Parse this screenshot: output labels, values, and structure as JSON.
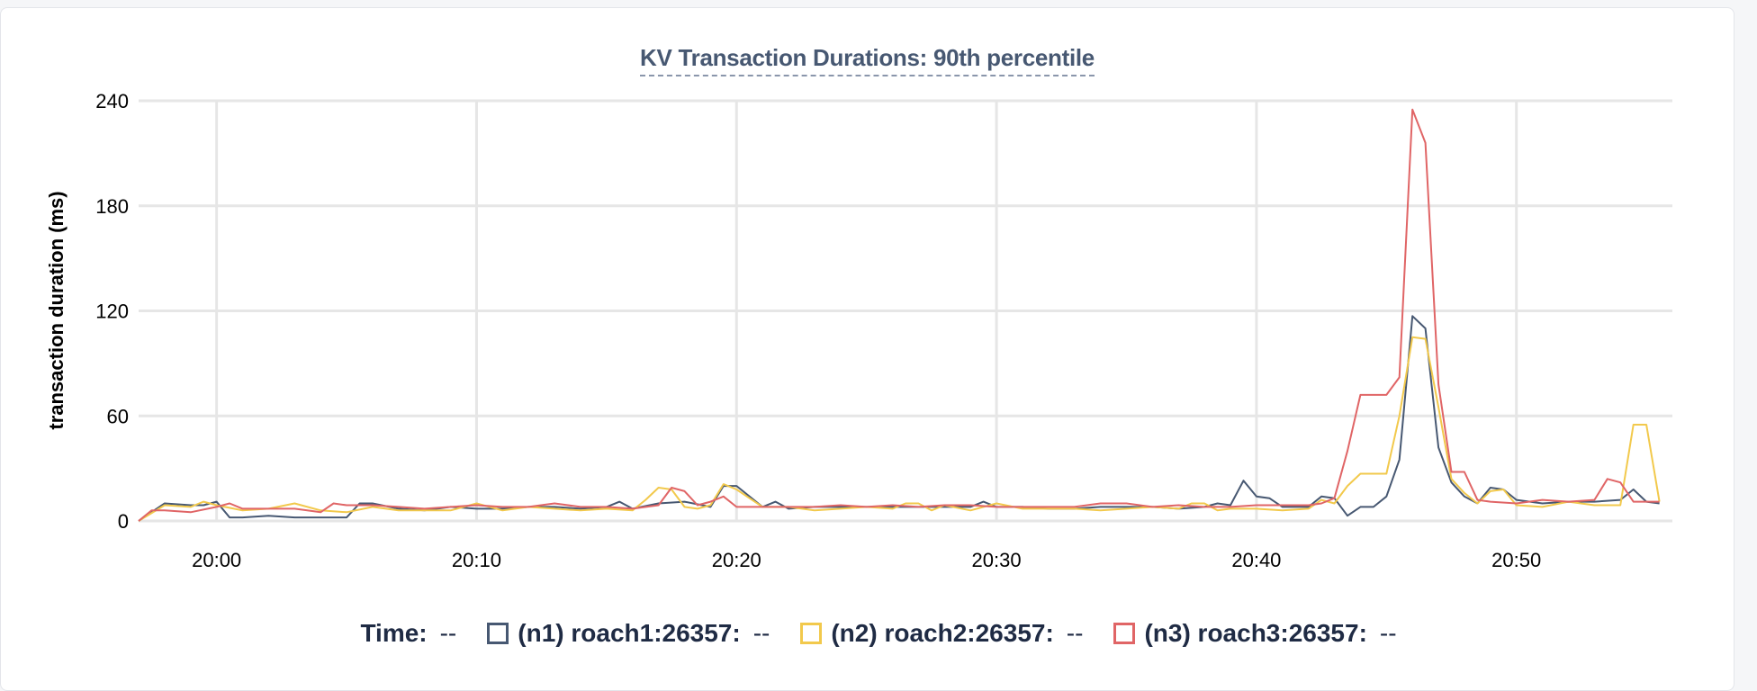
{
  "chart_data": {
    "type": "line",
    "title": "KV Transaction Durations: 90th percentile",
    "ylabel": "transaction duration (ms)",
    "xlabel": "",
    "ylim": [
      0,
      240
    ],
    "yticks": [
      0,
      60,
      120,
      180,
      240
    ],
    "xticks": [
      "20:00",
      "20:10",
      "20:20",
      "20:30",
      "20:40",
      "20:50"
    ],
    "xlim": [
      "19:57",
      "20:56"
    ],
    "grid": true,
    "series": [
      {
        "name": "(n1) roach1:26357:",
        "color": "#475872",
        "points": [
          [
            "19:57",
            0
          ],
          [
            "19:58",
            10
          ],
          [
            "19:59",
            9
          ],
          [
            "19:59.5",
            9
          ],
          [
            "20:00",
            11
          ],
          [
            "20:00.5",
            2
          ],
          [
            "20:01",
            2
          ],
          [
            "20:02",
            3
          ],
          [
            "20:03",
            2
          ],
          [
            "20:04",
            2
          ],
          [
            "20:05",
            2
          ],
          [
            "20:05.5",
            10
          ],
          [
            "20:06",
            10
          ],
          [
            "20:07",
            7
          ],
          [
            "20:08",
            6
          ],
          [
            "20:09",
            8
          ],
          [
            "20:10",
            7
          ],
          [
            "20:11",
            7
          ],
          [
            "20:12",
            8
          ],
          [
            "20:13",
            8
          ],
          [
            "20:14",
            7
          ],
          [
            "20:15",
            8
          ],
          [
            "20:15.5",
            11
          ],
          [
            "20:16",
            7
          ],
          [
            "20:17",
            10
          ],
          [
            "20:18",
            11
          ],
          [
            "20:19",
            8
          ],
          [
            "20:19.5",
            20
          ],
          [
            "20:20",
            20
          ],
          [
            "20:21",
            8
          ],
          [
            "20:21.5",
            11
          ],
          [
            "20:22",
            7
          ],
          [
            "20:23",
            8
          ],
          [
            "20:24",
            8
          ],
          [
            "20:25",
            8
          ],
          [
            "20:26",
            8
          ],
          [
            "20:27",
            8
          ],
          [
            "20:28",
            8
          ],
          [
            "20:29",
            8
          ],
          [
            "20:29.5",
            11
          ],
          [
            "20:30",
            8
          ],
          [
            "20:31",
            8
          ],
          [
            "20:32",
            7
          ],
          [
            "20:33",
            7
          ],
          [
            "20:34",
            8
          ],
          [
            "20:35",
            8
          ],
          [
            "20:36",
            8
          ],
          [
            "20:37",
            7
          ],
          [
            "20:38",
            8
          ],
          [
            "20:38.5",
            10
          ],
          [
            "20:39",
            9
          ],
          [
            "20:39.5",
            23
          ],
          [
            "20:40",
            14
          ],
          [
            "20:40.5",
            13
          ],
          [
            "20:41",
            8
          ],
          [
            "20:42",
            8
          ],
          [
            "20:42.5",
            14
          ],
          [
            "20:43",
            13
          ],
          [
            "20:43.5",
            3
          ],
          [
            "20:44",
            8
          ],
          [
            "20:44.5",
            8
          ],
          [
            "20:45",
            14
          ],
          [
            "20:45.5",
            35
          ],
          [
            "20:46",
            117
          ],
          [
            "20:46.5",
            110
          ],
          [
            "20:47",
            42
          ],
          [
            "20:47.5",
            22
          ],
          [
            "20:48",
            14
          ],
          [
            "20:48.5",
            10
          ],
          [
            "20:49",
            19
          ],
          [
            "20:49.5",
            18
          ],
          [
            "20:50",
            12
          ],
          [
            "20:51",
            10
          ],
          [
            "20:52",
            11
          ],
          [
            "20:53",
            11
          ],
          [
            "20:54",
            12
          ],
          [
            "20:54.5",
            18
          ],
          [
            "20:55",
            11
          ],
          [
            "20:55.5",
            10
          ]
        ]
      },
      {
        "name": "(n2) roach2:26357:",
        "color": "#f2c94c",
        "points": [
          [
            "19:57",
            0
          ],
          [
            "19:58",
            9
          ],
          [
            "19:59",
            8
          ],
          [
            "19:59.5",
            11
          ],
          [
            "20:00",
            9
          ],
          [
            "20:01",
            6
          ],
          [
            "20:02",
            7
          ],
          [
            "20:03",
            10
          ],
          [
            "20:04",
            6
          ],
          [
            "20:05",
            5
          ],
          [
            "20:06",
            8
          ],
          [
            "20:07",
            6
          ],
          [
            "20:08",
            6
          ],
          [
            "20:09",
            6
          ],
          [
            "20:10",
            10
          ],
          [
            "20:11",
            6
          ],
          [
            "20:12",
            8
          ],
          [
            "20:13",
            7
          ],
          [
            "20:14",
            6
          ],
          [
            "20:15",
            7
          ],
          [
            "20:16",
            6
          ],
          [
            "20:16.5",
            12
          ],
          [
            "20:17",
            19
          ],
          [
            "20:17.5",
            18
          ],
          [
            "20:18",
            8
          ],
          [
            "20:18.5",
            7
          ],
          [
            "20:19",
            9
          ],
          [
            "20:19.5",
            21
          ],
          [
            "20:20",
            18
          ],
          [
            "20:21",
            8
          ],
          [
            "20:22",
            8
          ],
          [
            "20:23",
            6
          ],
          [
            "20:24",
            7
          ],
          [
            "20:25",
            8
          ],
          [
            "20:26",
            7
          ],
          [
            "20:26.5",
            10
          ],
          [
            "20:27",
            10
          ],
          [
            "20:27.5",
            6
          ],
          [
            "20:28",
            9
          ],
          [
            "20:29",
            6
          ],
          [
            "20:30",
            10
          ],
          [
            "20:31",
            7
          ],
          [
            "20:32",
            7
          ],
          [
            "20:33",
            7
          ],
          [
            "20:34",
            6
          ],
          [
            "20:35",
            7
          ],
          [
            "20:36",
            8
          ],
          [
            "20:37",
            7
          ],
          [
            "20:37.5",
            10
          ],
          [
            "20:38",
            10
          ],
          [
            "20:38.5",
            6
          ],
          [
            "20:39",
            7
          ],
          [
            "20:40",
            7
          ],
          [
            "20:41",
            6
          ],
          [
            "20:42",
            7
          ],
          [
            "20:42.5",
            12
          ],
          [
            "20:43",
            10
          ],
          [
            "20:43.5",
            20
          ],
          [
            "20:44",
            27
          ],
          [
            "20:45",
            27
          ],
          [
            "20:45.5",
            60
          ],
          [
            "20:46",
            105
          ],
          [
            "20:46.5",
            104
          ],
          [
            "20:47",
            65
          ],
          [
            "20:47.5",
            24
          ],
          [
            "20:48",
            16
          ],
          [
            "20:48.5",
            10
          ],
          [
            "20:49",
            17
          ],
          [
            "20:49.5",
            18
          ],
          [
            "20:50",
            9
          ],
          [
            "20:51",
            8
          ],
          [
            "20:52",
            11
          ],
          [
            "20:53",
            9
          ],
          [
            "20:54",
            9
          ],
          [
            "20:54.5",
            55
          ],
          [
            "20:55",
            55
          ],
          [
            "20:55.5",
            11
          ]
        ]
      },
      {
        "name": "(n3) roach3:26357:",
        "color": "#e06566",
        "points": [
          [
            "19:57",
            0
          ],
          [
            "19:57.5",
            6
          ],
          [
            "19:58",
            6
          ],
          [
            "19:59",
            5
          ],
          [
            "20:00",
            8
          ],
          [
            "20:00.5",
            10
          ],
          [
            "20:01",
            7
          ],
          [
            "20:02",
            7
          ],
          [
            "20:03",
            7
          ],
          [
            "20:04",
            5
          ],
          [
            "20:04.5",
            10
          ],
          [
            "20:05",
            9
          ],
          [
            "20:06",
            9
          ],
          [
            "20:07",
            8
          ],
          [
            "20:08",
            7
          ],
          [
            "20:09",
            8
          ],
          [
            "20:10",
            9
          ],
          [
            "20:11",
            8
          ],
          [
            "20:12",
            8
          ],
          [
            "20:13",
            10
          ],
          [
            "20:14",
            8
          ],
          [
            "20:15",
            8
          ],
          [
            "20:16",
            7
          ],
          [
            "20:17",
            9
          ],
          [
            "20:17.5",
            19
          ],
          [
            "20:18",
            17
          ],
          [
            "20:18.5",
            9
          ],
          [
            "20:19",
            11
          ],
          [
            "20:19.5",
            14
          ],
          [
            "20:20",
            8
          ],
          [
            "20:21",
            8
          ],
          [
            "20:22",
            8
          ],
          [
            "20:23",
            8
          ],
          [
            "20:24",
            9
          ],
          [
            "20:25",
            8
          ],
          [
            "20:26",
            9
          ],
          [
            "20:27",
            8
          ],
          [
            "20:28",
            9
          ],
          [
            "20:29",
            9
          ],
          [
            "20:30",
            8
          ],
          [
            "20:31",
            8
          ],
          [
            "20:32",
            8
          ],
          [
            "20:33",
            8
          ],
          [
            "20:34",
            10
          ],
          [
            "20:35",
            10
          ],
          [
            "20:36",
            8
          ],
          [
            "20:37",
            9
          ],
          [
            "20:38",
            8
          ],
          [
            "20:39",
            8
          ],
          [
            "20:40",
            9
          ],
          [
            "20:41",
            9
          ],
          [
            "20:42",
            9
          ],
          [
            "20:42.5",
            10
          ],
          [
            "20:43",
            13
          ],
          [
            "20:43.5",
            40
          ],
          [
            "20:44",
            72
          ],
          [
            "20:45",
            72
          ],
          [
            "20:45.5",
            82
          ],
          [
            "20:46",
            235
          ],
          [
            "20:46.5",
            216
          ],
          [
            "20:47",
            78
          ],
          [
            "20:47.5",
            28
          ],
          [
            "20:48",
            28
          ],
          [
            "20:48.5",
            12
          ],
          [
            "20:49",
            11
          ],
          [
            "20:50",
            10
          ],
          [
            "20:51",
            12
          ],
          [
            "20:52",
            11
          ],
          [
            "20:53",
            12
          ],
          [
            "20:53.5",
            24
          ],
          [
            "20:54",
            22
          ],
          [
            "20:54.5",
            11
          ],
          [
            "20:55",
            11
          ],
          [
            "20:55.5",
            11
          ]
        ]
      }
    ]
  },
  "legend": {
    "time_label": "Time:",
    "time_value": "--",
    "items": [
      {
        "label": "(n1) roach1:26357:",
        "value": "--",
        "color": "#475872"
      },
      {
        "label": "(n2) roach2:26357:",
        "value": "--",
        "color": "#f2c94c"
      },
      {
        "label": "(n3) roach3:26357:",
        "value": "--",
        "color": "#e06566"
      }
    ]
  }
}
